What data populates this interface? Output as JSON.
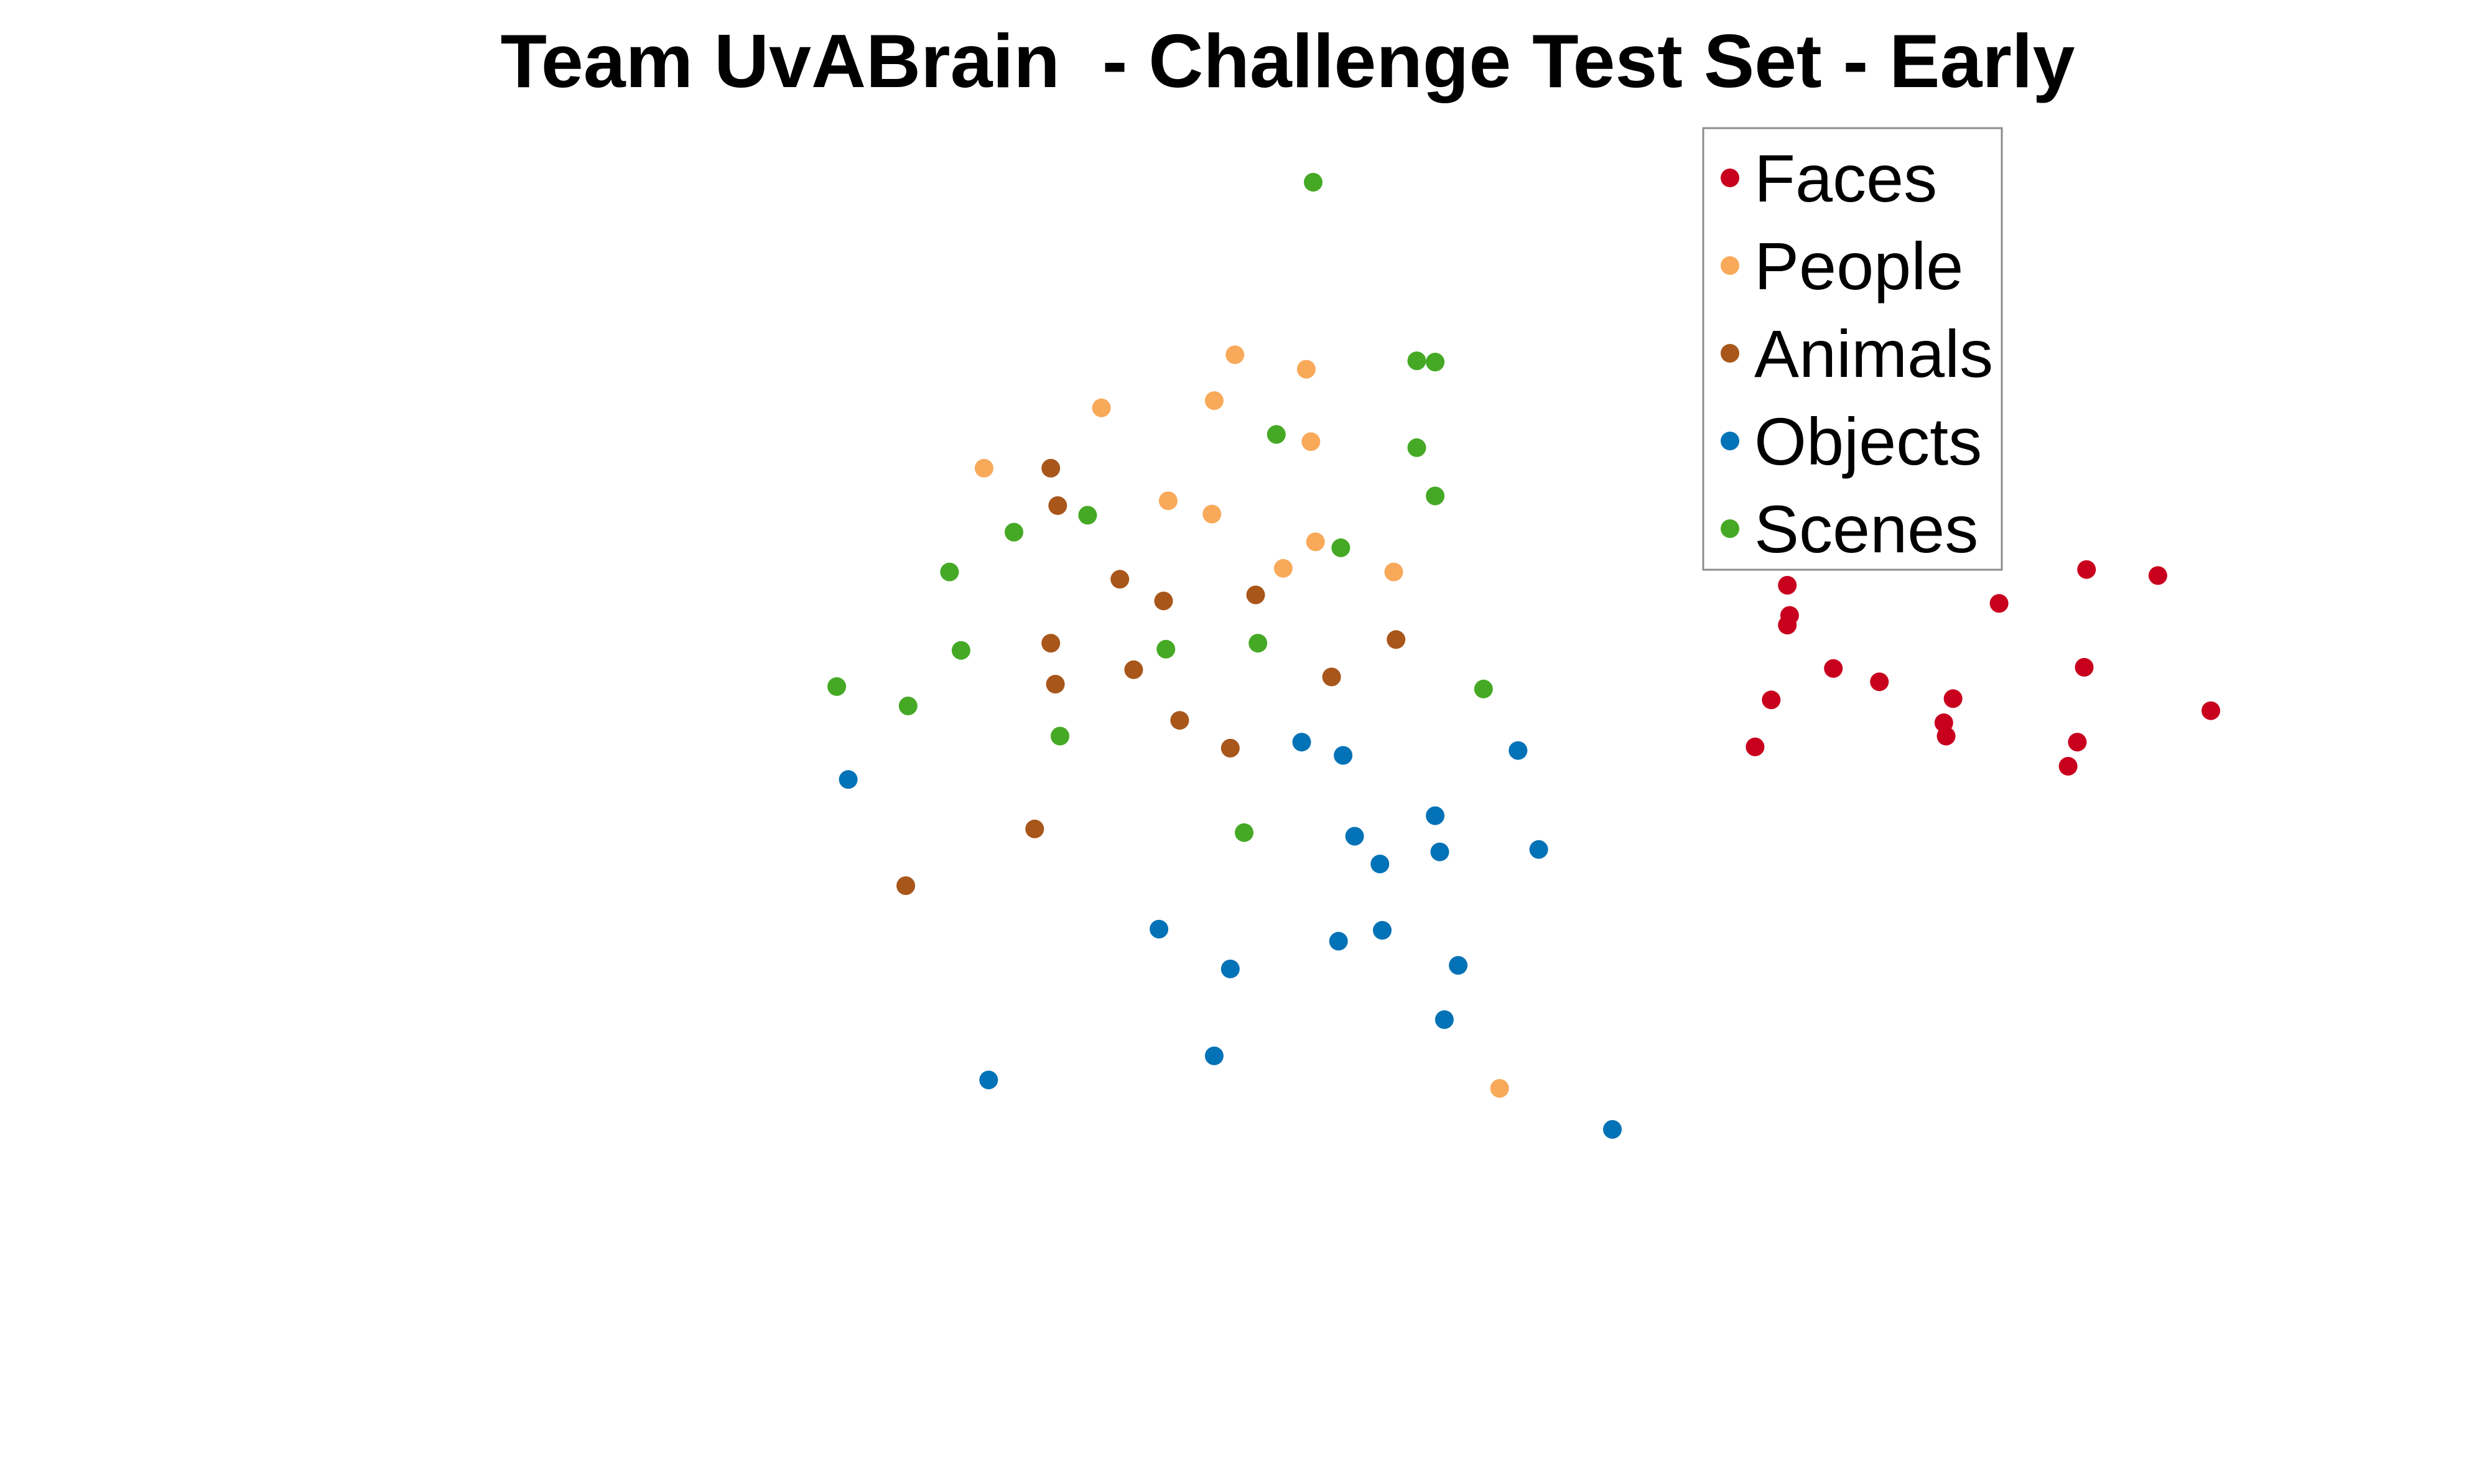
{
  "chart_data": {
    "type": "scatter",
    "title": "Team UvABrain  - Challenge Test Set - Early",
    "xlabel": "",
    "ylabel": "",
    "axes_visible": false,
    "grid": false,
    "xlim": [
      0,
      100
    ],
    "ylim": [
      0,
      100
    ],
    "legend": {
      "placement": "top-right",
      "boxed": true
    },
    "series": [
      {
        "name": "Faces",
        "color": "#c8001e",
        "points": [
          {
            "x": 80.4,
            "y": 60.2
          },
          {
            "x": 80.5,
            "y": 59.1
          },
          {
            "x": 86.6,
            "y": 72.9
          },
          {
            "x": 89.7,
            "y": 72.4
          },
          {
            "x": 73.6,
            "y": 71.6
          },
          {
            "x": 82.8,
            "y": 70.1
          },
          {
            "x": 73.7,
            "y": 69.1
          },
          {
            "x": 73.6,
            "y": 68.3
          },
          {
            "x": 75.6,
            "y": 64.7
          },
          {
            "x": 77.6,
            "y": 63.6
          },
          {
            "x": 86.5,
            "y": 64.8
          },
          {
            "x": 72.9,
            "y": 62.1
          },
          {
            "x": 92.0,
            "y": 61.2
          },
          {
            "x": 80.8,
            "y": 62.2
          },
          {
            "x": 86.2,
            "y": 58.6
          },
          {
            "x": 72.2,
            "y": 58.2
          },
          {
            "x": 85.8,
            "y": 56.6
          }
        ]
      },
      {
        "name": "People",
        "color": "#f8a95a",
        "points": [
          {
            "x": 49.6,
            "y": 90.7
          },
          {
            "x": 52.7,
            "y": 89.5
          },
          {
            "x": 43.8,
            "y": 86.3
          },
          {
            "x": 48.7,
            "y": 86.9
          },
          {
            "x": 38.7,
            "y": 81.3
          },
          {
            "x": 52.9,
            "y": 83.5
          },
          {
            "x": 46.7,
            "y": 78.6
          },
          {
            "x": 48.6,
            "y": 77.5
          },
          {
            "x": 53.1,
            "y": 75.2
          },
          {
            "x": 51.7,
            "y": 73.0
          },
          {
            "x": 56.5,
            "y": 72.7
          },
          {
            "x": 61.1,
            "y": 29.9
          }
        ]
      },
      {
        "name": "Animals",
        "color": "#a8561a",
        "points": [
          {
            "x": 41.6,
            "y": 81.3
          },
          {
            "x": 41.9,
            "y": 78.2
          },
          {
            "x": 44.6,
            "y": 72.1
          },
          {
            "x": 46.5,
            "y": 70.3
          },
          {
            "x": 50.5,
            "y": 70.8
          },
          {
            "x": 41.6,
            "y": 66.8
          },
          {
            "x": 56.6,
            "y": 67.1
          },
          {
            "x": 45.2,
            "y": 64.6
          },
          {
            "x": 53.8,
            "y": 64.0
          },
          {
            "x": 41.8,
            "y": 63.4
          },
          {
            "x": 47.2,
            "y": 60.4
          },
          {
            "x": 49.4,
            "y": 58.1
          },
          {
            "x": 40.9,
            "y": 51.4
          },
          {
            "x": 35.3,
            "y": 46.7
          }
        ]
      },
      {
        "name": "Objects",
        "color": "#0472b6",
        "points": [
          {
            "x": 52.5,
            "y": 58.6
          },
          {
            "x": 54.3,
            "y": 57.5
          },
          {
            "x": 61.9,
            "y": 57.9
          },
          {
            "x": 32.8,
            "y": 55.5
          },
          {
            "x": 58.3,
            "y": 52.5
          },
          {
            "x": 54.8,
            "y": 50.8
          },
          {
            "x": 58.5,
            "y": 49.5
          },
          {
            "x": 62.8,
            "y": 49.7
          },
          {
            "x": 55.9,
            "y": 48.5
          },
          {
            "x": 46.3,
            "y": 43.1
          },
          {
            "x": 56.0,
            "y": 43.0
          },
          {
            "x": 54.1,
            "y": 42.1
          },
          {
            "x": 49.4,
            "y": 39.8
          },
          {
            "x": 59.3,
            "y": 40.1
          },
          {
            "x": 58.7,
            "y": 35.6
          },
          {
            "x": 48.7,
            "y": 32.6
          },
          {
            "x": 38.9,
            "y": 30.6
          },
          {
            "x": 66.0,
            "y": 26.5
          }
        ]
      },
      {
        "name": "Scenes",
        "color": "#45a925",
        "points": [
          {
            "x": 53.0,
            "y": 105.0
          },
          {
            "x": 57.5,
            "y": 90.2
          },
          {
            "x": 58.3,
            "y": 90.1
          },
          {
            "x": 51.4,
            "y": 84.1
          },
          {
            "x": 57.5,
            "y": 83.0
          },
          {
            "x": 58.3,
            "y": 79.0
          },
          {
            "x": 43.2,
            "y": 77.4
          },
          {
            "x": 40.0,
            "y": 76.0
          },
          {
            "x": 54.2,
            "y": 74.7
          },
          {
            "x": 37.2,
            "y": 72.7
          },
          {
            "x": 50.6,
            "y": 66.8
          },
          {
            "x": 46.6,
            "y": 66.3
          },
          {
            "x": 37.7,
            "y": 66.2
          },
          {
            "x": 32.3,
            "y": 63.2
          },
          {
            "x": 35.4,
            "y": 61.6
          },
          {
            "x": 60.4,
            "y": 63.0
          },
          {
            "x": 42.0,
            "y": 59.1
          },
          {
            "x": 50.0,
            "y": 51.1
          }
        ]
      }
    ]
  }
}
